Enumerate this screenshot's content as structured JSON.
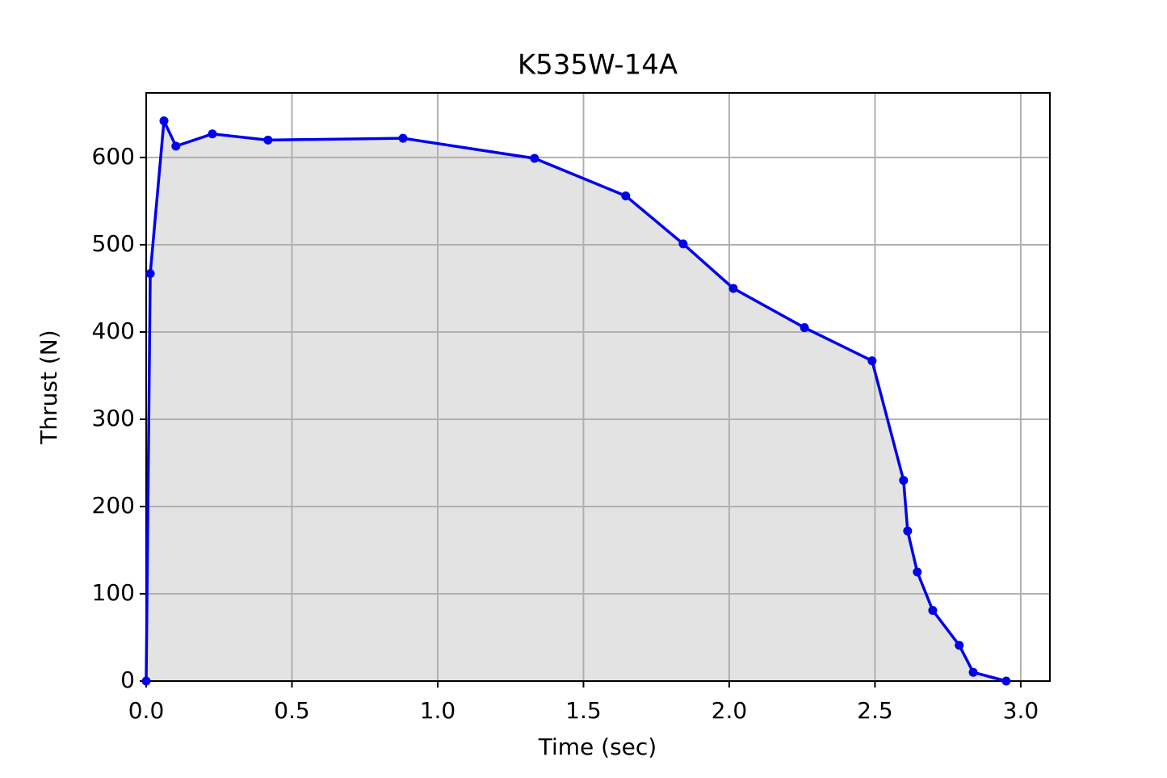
{
  "chart_data": {
    "type": "line",
    "title": "K535W-14A",
    "x_label": "Time (sec)",
    "y_label": "Thrust (N)",
    "x": [
      0,
      0.014,
      0.061,
      0.102,
      0.227,
      0.418,
      0.881,
      1.332,
      1.645,
      1.842,
      2.014,
      2.258,
      2.49,
      2.598,
      2.612,
      2.645,
      2.698,
      2.789,
      2.837,
      2.95
    ],
    "series": [
      {
        "color": "#0000ee",
        "fill": "#e3e3e3",
        "values": [
          0,
          467,
          642,
          613,
          627,
          620,
          622,
          599,
          556,
          501,
          450,
          405,
          367,
          230,
          172,
          125,
          81,
          41,
          10,
          0
        ]
      }
    ],
    "xlim": [
      0,
      3.1
    ],
    "ylim": [
      0,
      674
    ],
    "xticks": [
      {
        "value": 0,
        "label": "0.0"
      },
      0.5,
      {
        "value": 1,
        "label": "1.0"
      },
      1.5,
      {
        "value": 2,
        "label": "2.0"
      },
      2.5,
      {
        "value": 3,
        "label": "3.0"
      }
    ],
    "yticks": [
      0,
      100,
      200,
      300,
      400,
      500,
      600
    ],
    "grid": true
  }
}
